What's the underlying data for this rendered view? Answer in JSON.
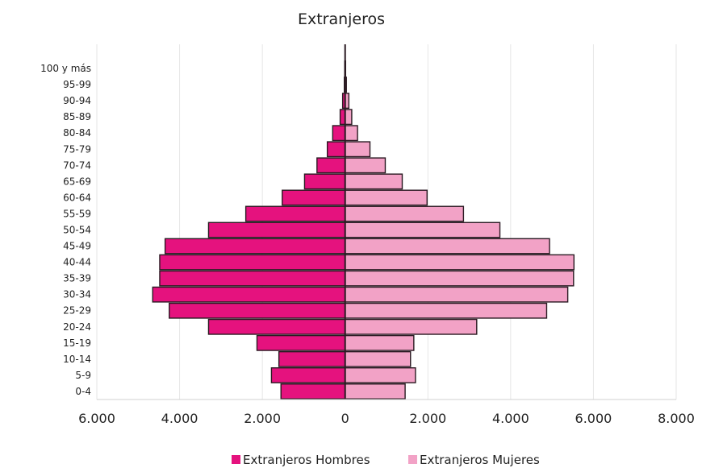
{
  "chart_data": {
    "type": "bar",
    "title": "Extranjeros",
    "categories": [
      "0-4",
      "5-9",
      "10-14",
      "15-19",
      "20-24",
      "25-29",
      "30-34",
      "35-39",
      "40-44",
      "45-49",
      "50-54",
      "55-59",
      "60-64",
      "65-69",
      "70-74",
      "75-79",
      "80-84",
      "85-89",
      "90-94",
      "95-99",
      "100 y más"
    ],
    "series": [
      {
        "name": "Extranjeros Hombres",
        "color": "#e5127e",
        "values": [
          -1550,
          -1780,
          -1600,
          -2130,
          -3300,
          -4250,
          -4650,
          -4480,
          -4480,
          -4350,
          -3300,
          -2400,
          -1520,
          -980,
          -680,
          -430,
          -300,
          -120,
          -60,
          -20,
          -10
        ]
      },
      {
        "name": "Extranjeros Mujeres",
        "color": "#f2a2c6",
        "values": [
          1450,
          1700,
          1580,
          1660,
          3180,
          4870,
          5380,
          5520,
          5530,
          4940,
          3740,
          2860,
          1980,
          1380,
          970,
          600,
          300,
          160,
          90,
          30,
          10
        ]
      }
    ],
    "xlim": [
      -6000,
      8000
    ],
    "xticks": [
      -6000,
      -4000,
      -2000,
      0,
      2000,
      4000,
      6000,
      8000
    ],
    "xtick_labels": [
      "6.000",
      "4.000",
      "2.000",
      "0",
      "2.000",
      "4.000",
      "6.000",
      "8.000"
    ],
    "grid": true,
    "legend_position": "bottom",
    "orientation": "horizontal-pyramid"
  }
}
